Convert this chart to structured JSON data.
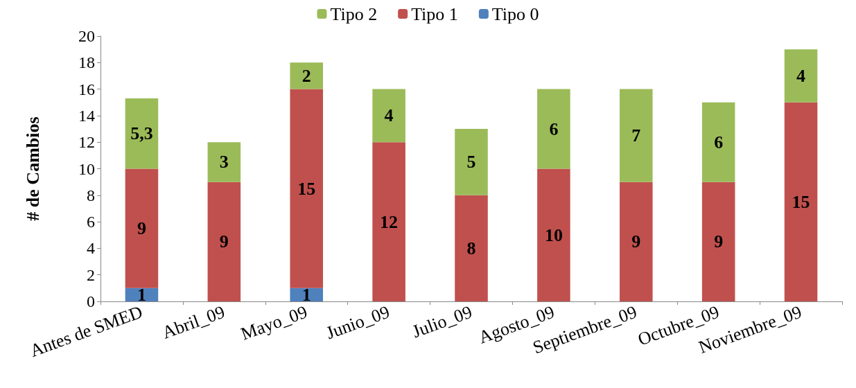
{
  "chart_data": {
    "type": "bar",
    "stacked": true,
    "ylabel": "# de Cambios",
    "categories": [
      "Antes de SMED",
      "Abril_09",
      "Mayo_09",
      "Junio_09",
      "Julio_09",
      "Agosto_09",
      "Septiembre_09",
      "Octubre_09",
      "Noviembre_09"
    ],
    "series": [
      {
        "name": "Tipo 0",
        "color": "#4f81bd",
        "values": [
          1,
          null,
          1,
          null,
          null,
          null,
          null,
          null,
          null
        ],
        "value_labels": [
          "1",
          null,
          "1",
          null,
          null,
          null,
          null,
          null,
          null
        ]
      },
      {
        "name": "Tipo 1",
        "color": "#c0504d",
        "values": [
          9,
          9,
          15,
          12,
          8,
          10,
          9,
          9,
          15
        ],
        "value_labels": [
          "9",
          "9",
          "15",
          "12",
          "8",
          "10",
          "9",
          "9",
          "15"
        ]
      },
      {
        "name": "Tipo 2",
        "color": "#9bbb59",
        "values": [
          5.3,
          3,
          2,
          4,
          5,
          6,
          7,
          6,
          4
        ],
        "value_labels": [
          "5,3",
          "3",
          "2",
          "4",
          "5",
          "6",
          "7",
          "6",
          "4"
        ]
      }
    ],
    "ylim": [
      0,
      20
    ],
    "yticks": [
      0,
      2,
      4,
      6,
      8,
      10,
      12,
      14,
      16,
      18,
      20
    ],
    "grid": false,
    "legend": "top"
  }
}
